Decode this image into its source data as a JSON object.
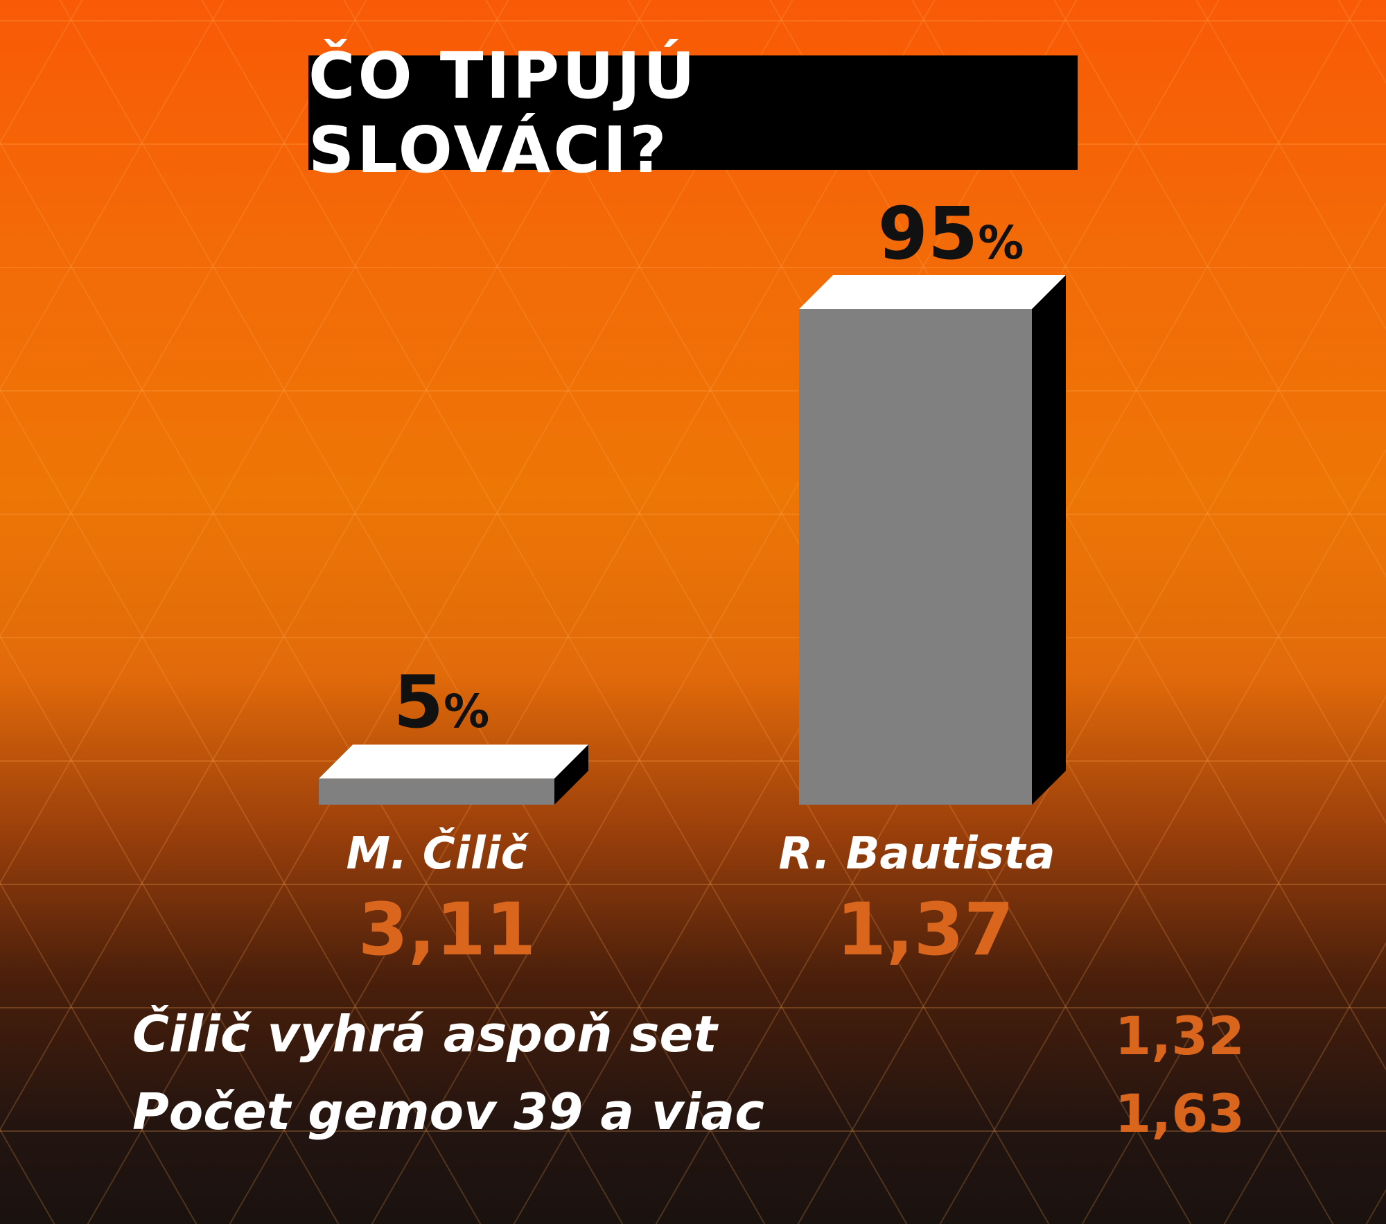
{
  "title": "ČO TIPUJÚ SLOVÁCI?",
  "chart_data": {
    "type": "bar",
    "categories": [
      "M. Čilič",
      "R. Bautista"
    ],
    "values": [
      5,
      95
    ],
    "value_labels": [
      "5",
      "95"
    ],
    "unit": "%",
    "odds": [
      "3,11",
      "1,37"
    ],
    "ylim": [
      0,
      100
    ],
    "grid": false,
    "colors": {
      "front": "#808080",
      "top": "#ffffff",
      "side": "#000000",
      "odds": "#d9661c"
    }
  },
  "extra_bets": [
    {
      "label": "Čilič vyhrá aspoň set",
      "odds": "1,32"
    },
    {
      "label": "Počet gemov 39 a viac",
      "odds": "1,63"
    }
  ]
}
